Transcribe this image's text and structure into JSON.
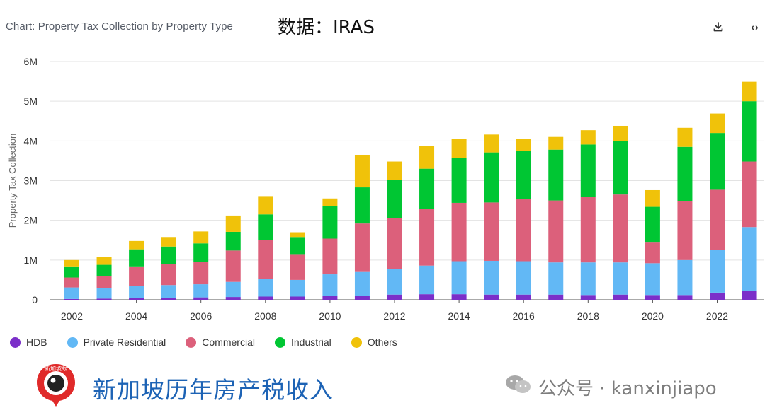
{
  "header": {
    "title": "Chart: Property Tax Collection by Property Type",
    "source_label": "数据：IRAS"
  },
  "toolbar": {
    "download_icon": "download-icon",
    "embed_label": "‹›"
  },
  "legend": [
    {
      "label": "HDB",
      "color": "#7b2fc9"
    },
    {
      "label": "Private Residential",
      "color": "#62b8f5"
    },
    {
      "label": "Commercial",
      "color": "#dc607b"
    },
    {
      "label": "Industrial",
      "color": "#00c633"
    },
    {
      "label": "Others",
      "color": "#f0c20a"
    }
  ],
  "footer": {
    "logo_text": "新加坡眼",
    "title": "新加坡历年房产税收入",
    "wechat_account": "公众号 · kanxinjiapo"
  },
  "chart_data": {
    "type": "bar",
    "stacked": true,
    "ylabel": "Property Tax Collection",
    "xlabel": "",
    "ylim": [
      0,
      6000000
    ],
    "yticks": [
      0,
      1000000,
      2000000,
      3000000,
      4000000,
      5000000,
      6000000
    ],
    "ytick_labels": [
      "0",
      "1M",
      "2M",
      "3M",
      "4M",
      "5M",
      "6M"
    ],
    "x_tick_labels": [
      "2002",
      "2004",
      "2006",
      "2008",
      "2010",
      "2012",
      "2014",
      "2016",
      "2018",
      "2020",
      "2022"
    ],
    "grid": true,
    "legend_position": "bottom-left",
    "categories": [
      "2002",
      "2003",
      "2004",
      "2005",
      "2006",
      "2007",
      "2008",
      "2009",
      "2010",
      "2011",
      "2012",
      "2013",
      "2014",
      "2015",
      "2016",
      "2017",
      "2018",
      "2019",
      "2020",
      "2021",
      "2022",
      "2023"
    ],
    "series": [
      {
        "name": "HDB",
        "color": "#7b2fc9",
        "values": [
          20000,
          30000,
          40000,
          50000,
          60000,
          70000,
          80000,
          80000,
          100000,
          100000,
          130000,
          140000,
          140000,
          130000,
          130000,
          130000,
          120000,
          130000,
          120000,
          120000,
          180000,
          230000
        ]
      },
      {
        "name": "Private Residential",
        "color": "#62b8f5",
        "values": [
          290000,
          270000,
          300000,
          320000,
          330000,
          380000,
          450000,
          420000,
          540000,
          600000,
          640000,
          720000,
          830000,
          850000,
          840000,
          810000,
          820000,
          810000,
          800000,
          880000,
          1070000,
          1600000
        ]
      },
      {
        "name": "Commercial",
        "color": "#dc607b",
        "values": [
          250000,
          290000,
          500000,
          530000,
          570000,
          790000,
          980000,
          650000,
          900000,
          1220000,
          1290000,
          1430000,
          1470000,
          1470000,
          1570000,
          1560000,
          1650000,
          1710000,
          520000,
          1480000,
          1520000,
          1650000
        ]
      },
      {
        "name": "Industrial",
        "color": "#00c633",
        "values": [
          280000,
          290000,
          430000,
          440000,
          460000,
          470000,
          640000,
          430000,
          820000,
          910000,
          960000,
          1010000,
          1130000,
          1260000,
          1200000,
          1280000,
          1320000,
          1340000,
          900000,
          1370000,
          1430000,
          1520000
        ]
      },
      {
        "name": "Others",
        "color": "#f0c20a",
        "values": [
          160000,
          190000,
          210000,
          240000,
          300000,
          410000,
          460000,
          120000,
          190000,
          820000,
          460000,
          580000,
          480000,
          450000,
          310000,
          320000,
          360000,
          390000,
          420000,
          480000,
          490000,
          490000
        ]
      }
    ]
  }
}
